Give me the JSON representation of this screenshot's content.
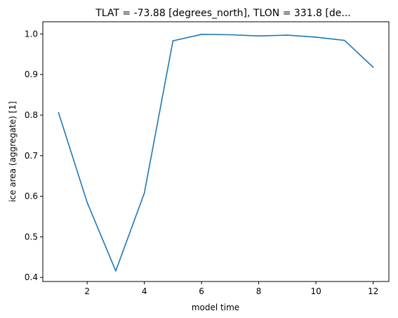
{
  "chart_data": {
    "type": "line",
    "title": "TLAT = -73.88 [degrees_north], TLON = 331.8 [de...",
    "xlabel": "model time",
    "ylabel": "ice area  (aggregate) [1]",
    "xlim": [
      0.45,
      12.55
    ],
    "ylim": [
      0.39,
      1.03
    ],
    "x_ticks": [
      2,
      4,
      6,
      8,
      10,
      12
    ],
    "y_ticks": [
      0.4,
      0.5,
      0.6,
      0.7,
      0.8,
      0.9,
      1.0
    ],
    "x_tick_labels": [
      "2",
      "4",
      "6",
      "8",
      "10",
      "12"
    ],
    "y_tick_labels": [
      "0.4",
      "0.5",
      "0.6",
      "0.7",
      "0.8",
      "0.9",
      "1.0"
    ],
    "grid": false,
    "series": [
      {
        "x": [
          1,
          2,
          3,
          4,
          5,
          6,
          7,
          8,
          9,
          10,
          11,
          12
        ],
        "values": [
          0.806,
          0.585,
          0.416,
          0.608,
          0.983,
          0.999,
          0.998,
          0.995,
          0.997,
          0.992,
          0.984,
          0.918
        ],
        "color": "#1f77b4"
      }
    ]
  }
}
